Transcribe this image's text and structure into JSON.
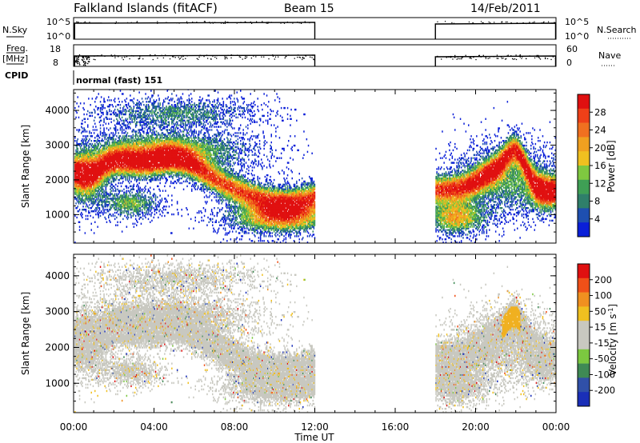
{
  "header": {
    "station": "Falkland Islands (fitACF)",
    "beam": "Beam 15",
    "date": "14/Feb/2011"
  },
  "top_panels": {
    "nsky": {
      "label": "N.Sky",
      "left_ticks": [
        "10^5",
        "10^0"
      ],
      "right_label": "N.Search",
      "right_ticks": [
        "10^5",
        "10^0"
      ]
    },
    "freq": {
      "label_line1": "Freq.",
      "label_line2": "[MHz]",
      "left_ticks": [
        "18",
        "8"
      ],
      "right_label": "Nave",
      "right_ticks": [
        "60",
        "0"
      ]
    },
    "cpid": {
      "label": "CPID",
      "value": "normal (fast) 151"
    }
  },
  "chart_data": [
    {
      "type": "heatmap",
      "name_hint": "power-panel",
      "ylabel": "Slant Range [km]",
      "yticks": [
        1000,
        2000,
        3000,
        4000
      ],
      "ylim": [
        180,
        4600
      ],
      "xlim_hours": [
        0,
        24
      ],
      "data_gap_hours": [
        12,
        18
      ],
      "colorbar": {
        "label": "Power [dB]",
        "ticks": [
          "4",
          "8",
          "12",
          "16",
          "20",
          "24",
          "28"
        ],
        "colors": [
          "#0a1fd8",
          "#1e4fb0",
          "#2f7f6a",
          "#3f9f55",
          "#7fc840",
          "#f0c020",
          "#f0a020",
          "#f07020",
          "#ee4018",
          "#e01010"
        ]
      }
    },
    {
      "type": "heatmap",
      "name_hint": "velocity-panel",
      "ylabel": "Slant Range [km]",
      "yticks": [
        1000,
        2000,
        3000,
        4000
      ],
      "ylim": [
        180,
        4600
      ],
      "xlim_hours": [
        0,
        24
      ],
      "data_gap_hours": [
        12,
        18
      ],
      "colorbar": {
        "label": "Velocity [m s",
        "label_sup": "-1",
        "label_end": "]",
        "ticks": [
          "200",
          "100",
          "50",
          "15",
          "-15",
          "-50",
          "-100",
          "-200"
        ],
        "colors": [
          "#1a2fb8",
          "#3050a8",
          "#3f8a55",
          "#7cc840",
          "#c8c8c0",
          "#c8c8c0",
          "#f0c020",
          "#f09020",
          "#f05018",
          "#e01010"
        ]
      }
    }
  ],
  "x_axis": {
    "label": "Time UT",
    "ticks": [
      "00:00",
      "04:00",
      "08:00",
      "12:00",
      "16:00",
      "20:00",
      "00:00"
    ]
  }
}
